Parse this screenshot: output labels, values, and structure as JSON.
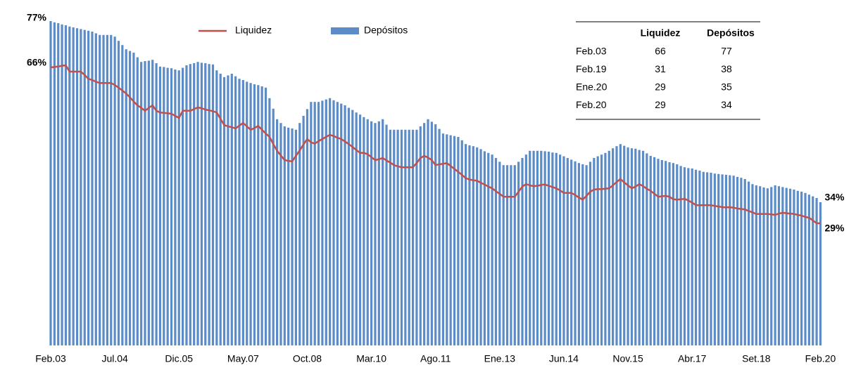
{
  "chart_data": {
    "type": "bar",
    "categories": [
      "Feb.03",
      null,
      null,
      null,
      null,
      null,
      null,
      null,
      null,
      null,
      null,
      null,
      null,
      null,
      null,
      null,
      null,
      "Jul.04",
      null,
      null,
      null,
      null,
      null,
      null,
      null,
      null,
      null,
      null,
      null,
      null,
      null,
      null,
      null,
      null,
      "Dic.05",
      null,
      null,
      null,
      null,
      null,
      null,
      null,
      null,
      null,
      null,
      null,
      null,
      null,
      null,
      null,
      null,
      "May.07",
      null,
      null,
      null,
      null,
      null,
      null,
      null,
      null,
      null,
      null,
      null,
      null,
      null,
      null,
      null,
      null,
      "Oct.08",
      null,
      null,
      null,
      null,
      null,
      null,
      null,
      null,
      null,
      null,
      null,
      null,
      null,
      null,
      null,
      null,
      "Mar.10",
      null,
      null,
      null,
      null,
      null,
      null,
      null,
      null,
      null,
      null,
      null,
      null,
      null,
      null,
      null,
      null,
      "Ago.11",
      null,
      null,
      null,
      null,
      null,
      null,
      null,
      null,
      null,
      null,
      null,
      null,
      null,
      null,
      null,
      null,
      "Ene.13",
      null,
      null,
      null,
      null,
      null,
      null,
      null,
      null,
      null,
      null,
      null,
      null,
      null,
      null,
      null,
      null,
      "Jun.14",
      null,
      null,
      null,
      null,
      null,
      null,
      null,
      null,
      null,
      null,
      null,
      null,
      null,
      null,
      null,
      null,
      "Nov.15",
      null,
      null,
      null,
      null,
      null,
      null,
      null,
      null,
      null,
      null,
      null,
      null,
      null,
      null,
      null,
      null,
      "Abr.17",
      null,
      null,
      null,
      null,
      null,
      null,
      null,
      null,
      null,
      null,
      null,
      null,
      null,
      null,
      null,
      null,
      "Set.18",
      null,
      null,
      null,
      null,
      null,
      null,
      null,
      null,
      null,
      null,
      null,
      null,
      null,
      null,
      null,
      null,
      "Feb.20"
    ],
    "series": [
      {
        "name": "Liquidez",
        "type": "line",
        "color": "#c0504d",
        "values": [
          66,
          66.1,
          66.2,
          66.4,
          66.5,
          65,
          65,
          65,
          65,
          64.2,
          63.3,
          63,
          62.6,
          62.3,
          62.3,
          62.3,
          62.3,
          61.8,
          61.2,
          60.5,
          59.8,
          58.9,
          57.9,
          57,
          56.4,
          55.7,
          56.4,
          57,
          55.7,
          55.3,
          55.2,
          55.1,
          55,
          54.5,
          54,
          55.7,
          55.7,
          55.7,
          56.1,
          56.5,
          56.3,
          56,
          55.8,
          55.6,
          55.3,
          53.8,
          52.3,
          52,
          51.8,
          51.5,
          52.2,
          52.8,
          52,
          51.2,
          51.6,
          52.1,
          51.2,
          50.3,
          49.5,
          47.8,
          46.2,
          45.1,
          44,
          43.8,
          43.7,
          45,
          46.3,
          47.7,
          49,
          48.2,
          47.9,
          48.5,
          49,
          49.5,
          50,
          49.7,
          49.3,
          49,
          48.4,
          47.8,
          47.1,
          46.4,
          45.7,
          45.7,
          45.4,
          44.7,
          44,
          44.2,
          44.5,
          43.9,
          43.4,
          42.8,
          42.5,
          42.3,
          42.3,
          42.3,
          42.3,
          43.3,
          44.5,
          45,
          44.6,
          44,
          42.8,
          43,
          43.1,
          43.3,
          42.6,
          41.9,
          41.2,
          40.5,
          39.7,
          39.4,
          39.2,
          39.1,
          38.6,
          38.2,
          37.7,
          37.3,
          36.6,
          36,
          35.3,
          35.3,
          35.3,
          35.3,
          36.5,
          37.7,
          38.3,
          38,
          37.8,
          37.9,
          38.1,
          38.2,
          37.9,
          37.6,
          37.3,
          36.8,
          36.2,
          36.2,
          36.2,
          35.7,
          35.1,
          34.6,
          35.5,
          36.5,
          37,
          37.1,
          37.1,
          37.2,
          37.3,
          38,
          38.8,
          39.5,
          38.7,
          38,
          37.3,
          37.7,
          38.3,
          37.8,
          37.2,
          36.7,
          36,
          35.3,
          35.4,
          35.5,
          35.3,
          34.7,
          34.6,
          34.7,
          34.8,
          34.4,
          33.9,
          33.3,
          33.3,
          33.3,
          33.3,
          33.3,
          33.1,
          33,
          32.8,
          32.8,
          32.8,
          32.7,
          32.5,
          32.4,
          32.3,
          31.9,
          31.6,
          31.2,
          31.2,
          31.2,
          31.2,
          31.1,
          31,
          31.3,
          31.5,
          31.4,
          31.3,
          31.2,
          31,
          30.8,
          30.5,
          30.3,
          29.7,
          29,
          29
        ],
        "value_labels": [
          "66%",
          null,
          null,
          null,
          null,
          null,
          null,
          null,
          null,
          null,
          null,
          null,
          null,
          null,
          null,
          null,
          null,
          null,
          null,
          null,
          null,
          null,
          null,
          null,
          null,
          null,
          null,
          null,
          null,
          null,
          null,
          null,
          null,
          null,
          null,
          null,
          null,
          null,
          null,
          null,
          null,
          null,
          null,
          null,
          null,
          null,
          null,
          null,
          null,
          null,
          null,
          null,
          null,
          null,
          null,
          null,
          null,
          null,
          null,
          null,
          null,
          null,
          null,
          null,
          null,
          null,
          null,
          null,
          null,
          null,
          null,
          null,
          null,
          null,
          null,
          null,
          null,
          null,
          null,
          null,
          null,
          null,
          null,
          null,
          null,
          null,
          null,
          null,
          null,
          null,
          null,
          null,
          null,
          null,
          null,
          null,
          null,
          null,
          null,
          null,
          null,
          null,
          null,
          null,
          null,
          null,
          null,
          null,
          null,
          null,
          null,
          null,
          null,
          null,
          null,
          null,
          null,
          null,
          null,
          null,
          null,
          null,
          null,
          null,
          null,
          null,
          null,
          null,
          null,
          null,
          null,
          null,
          null,
          null,
          null,
          null,
          null,
          null,
          null,
          null,
          null,
          null,
          null,
          null,
          null,
          null,
          null,
          null,
          null,
          null,
          null,
          null,
          null,
          null,
          null,
          null,
          null,
          null,
          null,
          null,
          null,
          null,
          null,
          null,
          null,
          null,
          null,
          null,
          null,
          null,
          null,
          null,
          null,
          null,
          null,
          null,
          null,
          null,
          null,
          null,
          null,
          null,
          null,
          null,
          null,
          null,
          null,
          null,
          null,
          null,
          null,
          null,
          null,
          null,
          null,
          null,
          null,
          null,
          null,
          null,
          null,
          null,
          null,
          null,
          "29%"
        ]
      },
      {
        "name": "Depósitos",
        "type": "bar",
        "color": "#5b8cc8",
        "values": [
          77,
          76.7,
          76.5,
          76.2,
          76,
          75.7,
          75.5,
          75.3,
          75.1,
          74.9,
          74.7,
          74.5,
          74.1,
          73.7,
          73.7,
          73.7,
          73.7,
          73.3,
          72.3,
          71.3,
          70.3,
          69.9,
          69.5,
          68.4,
          67.3,
          67.5,
          67.6,
          67.8,
          67,
          66.2,
          66.1,
          65.9,
          65.8,
          65.5,
          65.3,
          65.9,
          66.5,
          66.8,
          67,
          67.3,
          67.1,
          67,
          66.8,
          66.7,
          65.3,
          64.5,
          63.7,
          64.1,
          64.5,
          63.9,
          63.3,
          63,
          62.6,
          62.3,
          62,
          61.8,
          61.5,
          61.2,
          58.7,
          56.2,
          53.7,
          52.8,
          52,
          51.7,
          51.5,
          51.2,
          52.8,
          54.5,
          56.1,
          57.8,
          57.8,
          57.8,
          58.1,
          58.4,
          58.7,
          58.2,
          57.8,
          57.4,
          57,
          56.4,
          55.9,
          55.3,
          54.8,
          54.2,
          53.7,
          53.2,
          52.8,
          53.2,
          53.7,
          52.4,
          51.2,
          51.2,
          51.2,
          51.2,
          51.2,
          51.2,
          51.2,
          51.2,
          52,
          52.8,
          53.7,
          53.1,
          52.5,
          51.4,
          50.3,
          50.1,
          49.9,
          49.7,
          49.5,
          48.7,
          47.8,
          47.5,
          47.3,
          47,
          46.6,
          46.1,
          45.7,
          45.3,
          44.5,
          43.6,
          42.8,
          42.8,
          42.8,
          42.8,
          43.6,
          44.5,
          45.3,
          46.2,
          46.2,
          46.2,
          46.2,
          46.1,
          46,
          45.8,
          45.7,
          45.3,
          44.9,
          44.5,
          44.1,
          43.7,
          43.3,
          43,
          42.8,
          43.6,
          44.5,
          44.9,
          45.3,
          45.7,
          46.2,
          46.8,
          47.3,
          47.8,
          47.4,
          47,
          46.8,
          46.7,
          46.4,
          46.2,
          45.6,
          45,
          44.7,
          44.3,
          44,
          43.8,
          43.5,
          43.3,
          43,
          42.6,
          42.3,
          42.1,
          42,
          41.7,
          41.5,
          41.2,
          41.1,
          41,
          40.8,
          40.7,
          40.6,
          40.5,
          40.4,
          40.3,
          40,
          39.8,
          39.5,
          38.9,
          38.3,
          38,
          37.8,
          37.5,
          37.3,
          37.6,
          38,
          37.8,
          37.6,
          37.4,
          37.2,
          37,
          36.7,
          36.5,
          36.2,
          35.8,
          35.4,
          35,
          34
        ],
        "value_labels": [
          "77%",
          null,
          null,
          null,
          null,
          null,
          null,
          null,
          null,
          null,
          null,
          null,
          null,
          null,
          null,
          null,
          null,
          null,
          null,
          null,
          null,
          null,
          null,
          null,
          null,
          null,
          null,
          null,
          null,
          null,
          null,
          null,
          null,
          null,
          null,
          null,
          null,
          null,
          null,
          null,
          null,
          null,
          null,
          null,
          null,
          null,
          null,
          null,
          null,
          null,
          null,
          null,
          null,
          null,
          null,
          null,
          null,
          null,
          null,
          null,
          null,
          null,
          null,
          null,
          null,
          null,
          null,
          null,
          null,
          null,
          null,
          null,
          null,
          null,
          null,
          null,
          null,
          null,
          null,
          null,
          null,
          null,
          null,
          null,
          null,
          null,
          null,
          null,
          null,
          null,
          null,
          null,
          null,
          null,
          null,
          null,
          null,
          null,
          null,
          null,
          null,
          null,
          null,
          null,
          null,
          null,
          null,
          null,
          null,
          null,
          null,
          null,
          null,
          null,
          null,
          null,
          null,
          null,
          null,
          null,
          null,
          null,
          null,
          null,
          null,
          null,
          null,
          null,
          null,
          null,
          null,
          null,
          null,
          null,
          null,
          null,
          null,
          null,
          null,
          null,
          null,
          null,
          null,
          null,
          null,
          null,
          null,
          null,
          null,
          null,
          null,
          null,
          null,
          null,
          null,
          null,
          null,
          null,
          null,
          null,
          null,
          null,
          null,
          null,
          null,
          null,
          null,
          null,
          null,
          null,
          null,
          null,
          null,
          null,
          null,
          null,
          null,
          null,
          null,
          null,
          null,
          null,
          null,
          null,
          null,
          null,
          null,
          null,
          null,
          null,
          null,
          null,
          null,
          null,
          null,
          null,
          null,
          null,
          null,
          null,
          null,
          null,
          null,
          null,
          "34%"
        ]
      }
    ],
    "legend": "top"
  },
  "table": {
    "columns": [
      "Liquidez",
      "Depósitos"
    ],
    "rows": [
      {
        "label": "Feb.03",
        "values": [
          66,
          77
        ]
      },
      {
        "label": "Feb.19",
        "values": [
          31,
          38
        ]
      },
      {
        "label": "Ene.20",
        "values": [
          29,
          35
        ]
      },
      {
        "label": "Feb.20",
        "values": [
          29,
          34
        ]
      }
    ]
  }
}
